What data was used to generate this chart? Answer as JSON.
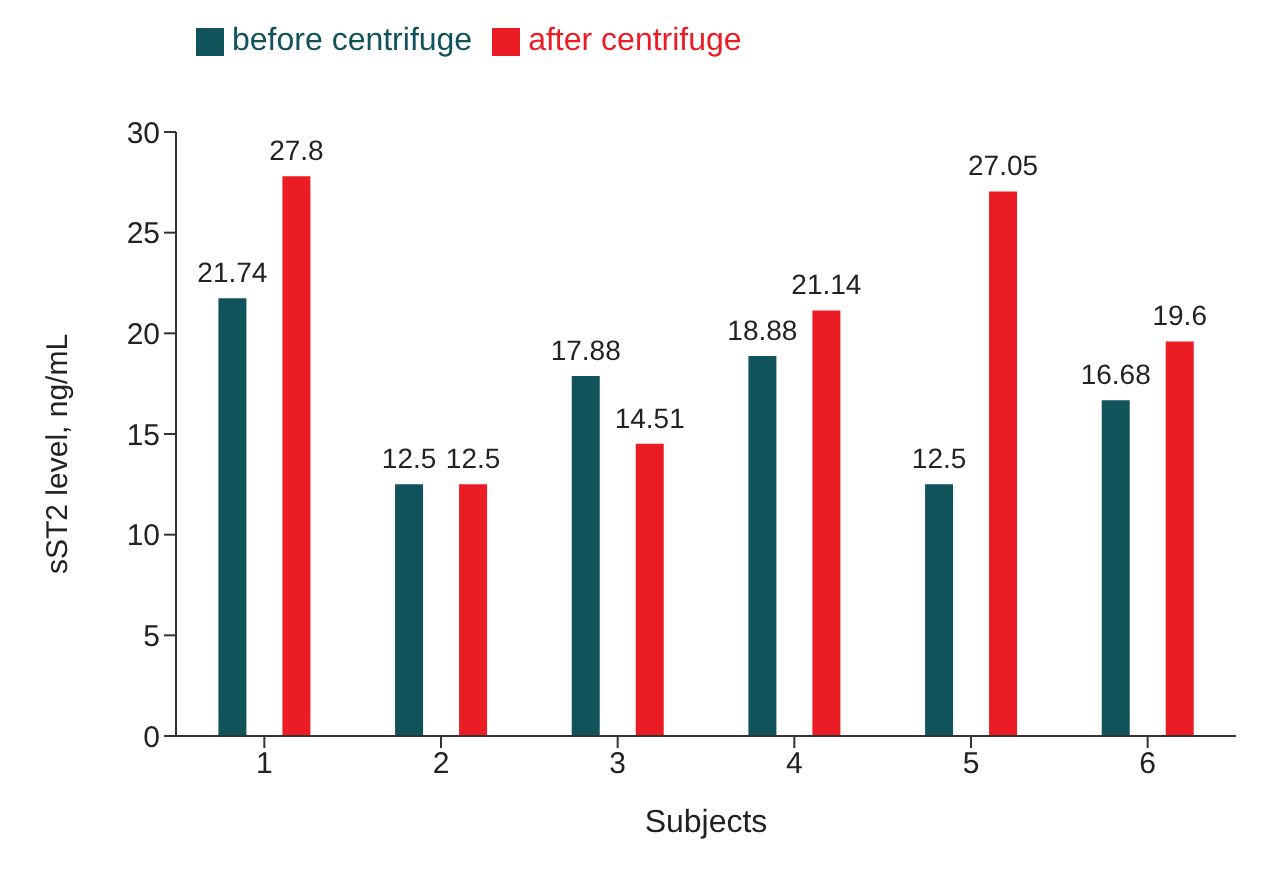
{
  "chart_data": {
    "type": "bar",
    "xlabel": "Subjects",
    "ylabel": "sST2 level, ng/mL",
    "categories": [
      "1",
      "2",
      "3",
      "4",
      "5",
      "6"
    ],
    "series": [
      {
        "name": "before centrifuge",
        "color": "#11535a",
        "values": [
          21.74,
          12.5,
          17.88,
          18.88,
          12.5,
          16.68
        ]
      },
      {
        "name": "after centrifuge",
        "color": "#ec1c24",
        "values": [
          27.8,
          12.5,
          14.51,
          21.14,
          27.05,
          19.6
        ]
      }
    ],
    "ylim": [
      0,
      30
    ],
    "yticks": [
      0,
      5,
      10,
      15,
      20,
      25,
      30
    ],
    "data_labels": true,
    "legend": "top left",
    "grid": false
  }
}
